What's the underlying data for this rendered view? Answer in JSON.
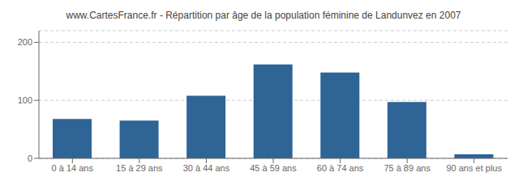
{
  "chart_data": {
    "type": "bar",
    "title": "www.CartesFrance.fr - Répartition par âge de la population féminine de Landunvez en 2007",
    "categories": [
      "0 à 14 ans",
      "15 à 29 ans",
      "30 à 44 ans",
      "45 à 59 ans",
      "60 à 74 ans",
      "75 à 89 ans",
      "90 ans et plus"
    ],
    "values": [
      68,
      65,
      108,
      162,
      148,
      97,
      7
    ],
    "color": "#2e6496",
    "ylim": [
      0,
      220
    ],
    "yticks": [
      0,
      100,
      200
    ],
    "grid": true
  }
}
